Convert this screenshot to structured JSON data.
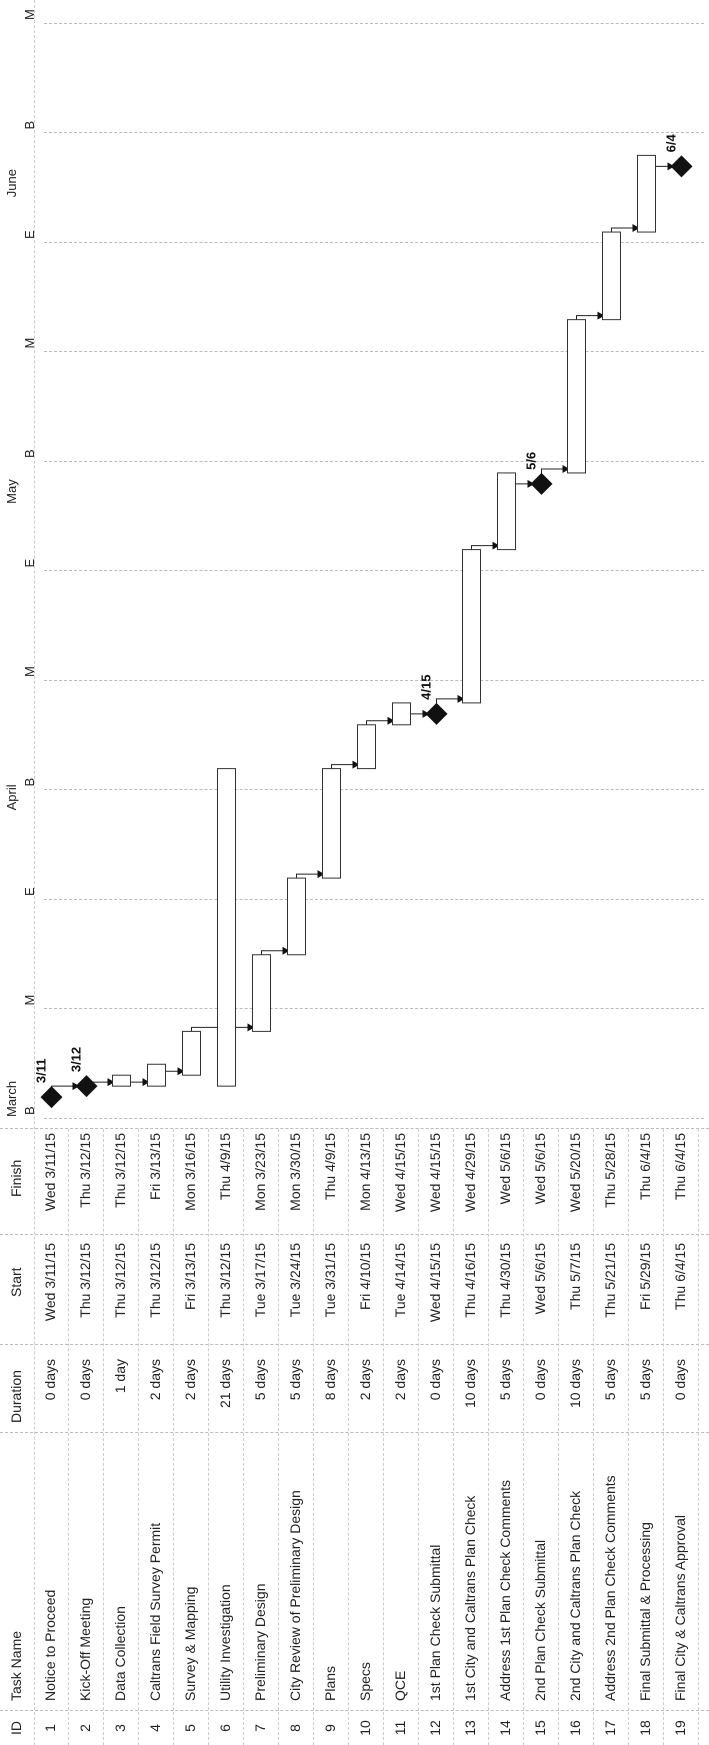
{
  "table": {
    "headers": {
      "id": "ID",
      "name": "Task Name",
      "duration": "Duration",
      "start": "Start",
      "finish": "Finish"
    },
    "rows": [
      {
        "id": "1",
        "name": "Notice to Proceed",
        "duration": "0 days",
        "start": "Wed 3/11/15",
        "finish": "Wed 3/11/15"
      },
      {
        "id": "2",
        "name": "Kick-Off Meeting",
        "duration": "0 days",
        "start": "Thu 3/12/15",
        "finish": "Thu 3/12/15"
      },
      {
        "id": "3",
        "name": "Data Collection",
        "duration": "1 day",
        "start": "Thu 3/12/15",
        "finish": "Thu 3/12/15"
      },
      {
        "id": "4",
        "name": "Caltrans Field Survey Permit",
        "duration": "2 days",
        "start": "Thu 3/12/15",
        "finish": "Fri 3/13/15"
      },
      {
        "id": "5",
        "name": "Survey & Mapping",
        "duration": "2 days",
        "start": "Fri 3/13/15",
        "finish": "Mon 3/16/15"
      },
      {
        "id": "6",
        "name": "Utility Investigation",
        "duration": "21 days",
        "start": "Thu 3/12/15",
        "finish": "Thu 4/9/15"
      },
      {
        "id": "7",
        "name": "Preliminary Design",
        "duration": "5 days",
        "start": "Tue 3/17/15",
        "finish": "Mon 3/23/15"
      },
      {
        "id": "8",
        "name": "City Review of Preliminary Design",
        "duration": "5 days",
        "start": "Tue 3/24/15",
        "finish": "Mon 3/30/15"
      },
      {
        "id": "9",
        "name": "Plans",
        "duration": "8 days",
        "start": "Tue 3/31/15",
        "finish": "Thu 4/9/15"
      },
      {
        "id": "10",
        "name": "Specs",
        "duration": "2 days",
        "start": "Fri 4/10/15",
        "finish": "Mon 4/13/15"
      },
      {
        "id": "11",
        "name": "QCE",
        "duration": "2 days",
        "start": "Tue 4/14/15",
        "finish": "Wed 4/15/15"
      },
      {
        "id": "12",
        "name": "1st Plan Check Submittal",
        "duration": "0 days",
        "start": "Wed 4/15/15",
        "finish": "Wed 4/15/15"
      },
      {
        "id": "13",
        "name": "1st City and Caltrans Plan Check",
        "duration": "10 days",
        "start": "Thu 4/16/15",
        "finish": "Wed 4/29/15"
      },
      {
        "id": "14",
        "name": "Address 1st Plan Check Comments",
        "duration": "5 days",
        "start": "Thu 4/30/15",
        "finish": "Wed 5/6/15"
      },
      {
        "id": "15",
        "name": "2nd Plan Check Submittal",
        "duration": "0 days",
        "start": "Wed 5/6/15",
        "finish": "Wed 5/6/15"
      },
      {
        "id": "16",
        "name": "2nd City and Caltrans Plan Check",
        "duration": "10 days",
        "start": "Thu 5/7/15",
        "finish": "Wed 5/20/15"
      },
      {
        "id": "17",
        "name": "Address 2nd Plan Check Comments",
        "duration": "5 days",
        "start": "Thu 5/21/15",
        "finish": "Thu 5/28/15"
      },
      {
        "id": "18",
        "name": "Final Submittal & Processing",
        "duration": "5 days",
        "start": "Fri 5/29/15",
        "finish": "Thu 6/4/15"
      },
      {
        "id": "19",
        "name": "Final City & Caltrans Approval",
        "duration": "0 days",
        "start": "Thu 6/4/15",
        "finish": "Thu 6/4/15"
      }
    ]
  },
  "timescale": {
    "months": [
      {
        "label": "March",
        "date": "2015-03-09"
      },
      {
        "label": "April",
        "date": "2015-04-06"
      },
      {
        "label": "May",
        "date": "2015-05-04"
      },
      {
        "label": "June",
        "date": "2015-06-01"
      }
    ],
    "periods": [
      {
        "label": "B",
        "date": "2015-03-09"
      },
      {
        "label": "M",
        "date": "2015-03-19"
      },
      {
        "label": "E",
        "date": "2015-03-29"
      },
      {
        "label": "B",
        "date": "2015-04-08"
      },
      {
        "label": "M",
        "date": "2015-04-18"
      },
      {
        "label": "E",
        "date": "2015-04-28"
      },
      {
        "label": "B",
        "date": "2015-05-08"
      },
      {
        "label": "M",
        "date": "2015-05-18"
      },
      {
        "label": "E",
        "date": "2015-05-28"
      },
      {
        "label": "B",
        "date": "2015-06-07"
      },
      {
        "label": "M",
        "date": "2015-06-17"
      }
    ]
  },
  "chart_data": {
    "type": "gantt",
    "tasks": [
      {
        "id": 1,
        "start": "2015-03-11",
        "end": "2015-03-11",
        "milestone": true,
        "label": "3/11"
      },
      {
        "id": 2,
        "start": "2015-03-12",
        "end": "2015-03-12",
        "milestone": true,
        "label": "3/12"
      },
      {
        "id": 3,
        "start": "2015-03-12",
        "end": "2015-03-12",
        "milestone": false
      },
      {
        "id": 4,
        "start": "2015-03-12",
        "end": "2015-03-13",
        "milestone": false
      },
      {
        "id": 5,
        "start": "2015-03-13",
        "end": "2015-03-16",
        "milestone": false
      },
      {
        "id": 6,
        "start": "2015-03-12",
        "end": "2015-04-09",
        "milestone": false
      },
      {
        "id": 7,
        "start": "2015-03-17",
        "end": "2015-03-23",
        "milestone": false
      },
      {
        "id": 8,
        "start": "2015-03-24",
        "end": "2015-03-30",
        "milestone": false
      },
      {
        "id": 9,
        "start": "2015-03-31",
        "end": "2015-04-09",
        "milestone": false
      },
      {
        "id": 10,
        "start": "2015-04-10",
        "end": "2015-04-13",
        "milestone": false
      },
      {
        "id": 11,
        "start": "2015-04-14",
        "end": "2015-04-15",
        "milestone": false
      },
      {
        "id": 12,
        "start": "2015-04-15",
        "end": "2015-04-15",
        "milestone": true,
        "label": "4/15"
      },
      {
        "id": 13,
        "start": "2015-04-16",
        "end": "2015-04-29",
        "milestone": false
      },
      {
        "id": 14,
        "start": "2015-04-30",
        "end": "2015-05-06",
        "milestone": false
      },
      {
        "id": 15,
        "start": "2015-05-06",
        "end": "2015-05-06",
        "milestone": true,
        "label": "5/6"
      },
      {
        "id": 16,
        "start": "2015-05-07",
        "end": "2015-05-20",
        "milestone": false
      },
      {
        "id": 17,
        "start": "2015-05-21",
        "end": "2015-05-28",
        "milestone": false
      },
      {
        "id": 18,
        "start": "2015-05-29",
        "end": "2015-06-04",
        "milestone": false
      },
      {
        "id": 19,
        "start": "2015-06-04",
        "end": "2015-06-04",
        "milestone": true,
        "label": "6/4"
      }
    ],
    "links": [
      [
        1,
        2
      ],
      [
        2,
        3
      ],
      [
        3,
        4
      ],
      [
        4,
        5
      ],
      [
        5,
        7
      ],
      [
        7,
        8
      ],
      [
        8,
        9
      ],
      [
        9,
        10
      ],
      [
        10,
        11
      ],
      [
        11,
        12
      ],
      [
        12,
        13
      ],
      [
        13,
        14
      ],
      [
        14,
        15
      ],
      [
        15,
        16
      ],
      [
        16,
        17
      ],
      [
        17,
        18
      ],
      [
        18,
        19
      ]
    ],
    "x_range": [
      "2015-03-09",
      "2015-06-22"
    ]
  }
}
